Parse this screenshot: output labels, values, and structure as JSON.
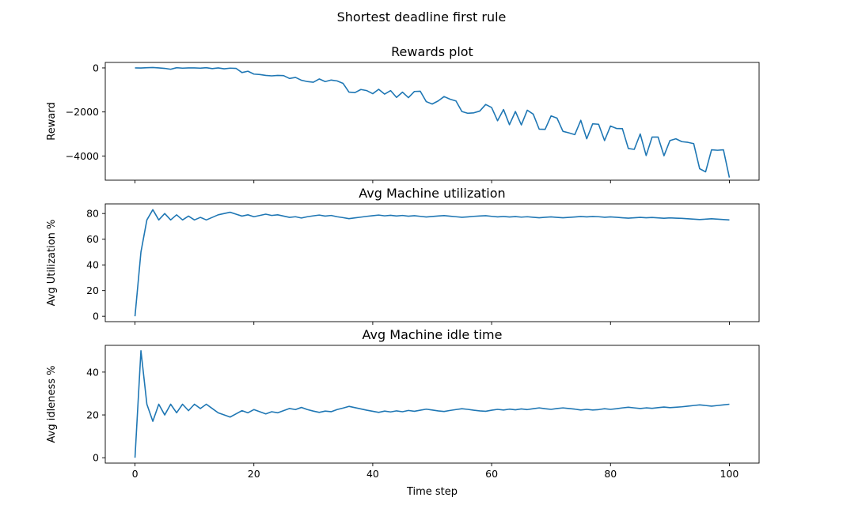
{
  "figure": {
    "suptitle": "Shortest deadline first rule",
    "line_color": "#1f77b4"
  },
  "chart_data": [
    {
      "type": "line",
      "title": "Rewards plot",
      "xlabel": "",
      "ylabel": "Reward",
      "xlim": [
        -5,
        105
      ],
      "ylim": [
        -5100,
        250
      ],
      "xticks": [
        0,
        20,
        40,
        60,
        80,
        100
      ],
      "xticklabels": [
        "",
        "",
        "",
        "",
        "",
        ""
      ],
      "yticks": [
        0,
        -2000,
        -4000
      ],
      "yticklabels": [
        "0",
        "−2000",
        "−4000"
      ],
      "grid": false,
      "x": [
        0,
        1,
        2,
        3,
        4,
        5,
        6,
        7,
        8,
        9,
        10,
        11,
        12,
        13,
        14,
        15,
        16,
        17,
        18,
        19,
        20,
        21,
        22,
        23,
        24,
        25,
        26,
        27,
        28,
        29,
        30,
        31,
        32,
        33,
        34,
        35,
        36,
        37,
        38,
        39,
        40,
        41,
        42,
        43,
        44,
        45,
        46,
        47,
        48,
        49,
        50,
        51,
        52,
        53,
        54,
        55,
        56,
        57,
        58,
        59,
        60,
        61,
        62,
        63,
        64,
        65,
        66,
        67,
        68,
        69,
        70,
        71,
        72,
        73,
        74,
        75,
        76,
        77,
        78,
        79,
        80,
        81,
        82,
        83,
        84,
        85,
        86,
        87,
        88,
        89,
        90,
        91,
        92,
        93,
        94,
        95,
        96,
        97,
        98,
        99,
        100
      ],
      "y": [
        0,
        -5,
        10,
        20,
        0,
        -20,
        -60,
        10,
        -10,
        0,
        0,
        -10,
        10,
        -30,
        0,
        -40,
        -10,
        -20,
        -210,
        -150,
        -280,
        -300,
        -340,
        -360,
        -340,
        -350,
        -480,
        -430,
        -560,
        -620,
        -650,
        -500,
        -620,
        -550,
        -590,
        -700,
        -1100,
        -1120,
        -980,
        -1030,
        -1170,
        -970,
        -1190,
        -1030,
        -1340,
        -1100,
        -1350,
        -1070,
        -1060,
        -1530,
        -1640,
        -1500,
        -1300,
        -1420,
        -1500,
        -1980,
        -2060,
        -2040,
        -1960,
        -1660,
        -1800,
        -2400,
        -1890,
        -2580,
        -1980,
        -2590,
        -1920,
        -2100,
        -2780,
        -2790,
        -2180,
        -2280,
        -2880,
        -2950,
        -3030,
        -2380,
        -3220,
        -2540,
        -2560,
        -3300,
        -2640,
        -2750,
        -2760,
        -3660,
        -3700,
        -3000,
        -3980,
        -3140,
        -3140,
        -3990,
        -3300,
        -3220,
        -3350,
        -3380,
        -3440,
        -4580,
        -4720,
        -3720,
        -3740,
        -3720,
        -4980
      ]
    },
    {
      "type": "line",
      "title": "Avg Machine utilization",
      "xlabel": "",
      "ylabel": "Avg Utilization %",
      "xlim": [
        -5,
        105
      ],
      "ylim": [
        -4.2,
        87.5
      ],
      "xticks": [
        0,
        20,
        40,
        60,
        80,
        100
      ],
      "xticklabels": [
        "",
        "",
        "",
        "",
        "",
        ""
      ],
      "yticks": [
        0,
        20,
        40,
        60,
        80
      ],
      "yticklabels": [
        "0",
        "20",
        "40",
        "60",
        "80"
      ],
      "grid": false,
      "x": [
        0,
        1,
        2,
        3,
        4,
        5,
        6,
        7,
        8,
        9,
        10,
        11,
        12,
        13,
        14,
        15,
        16,
        17,
        18,
        19,
        20,
        21,
        22,
        23,
        24,
        25,
        26,
        27,
        28,
        29,
        30,
        31,
        32,
        33,
        34,
        35,
        36,
        37,
        38,
        39,
        40,
        41,
        42,
        43,
        44,
        45,
        46,
        47,
        48,
        49,
        50,
        51,
        52,
        53,
        54,
        55,
        56,
        57,
        58,
        59,
        60,
        61,
        62,
        63,
        64,
        65,
        66,
        67,
        68,
        69,
        70,
        71,
        72,
        73,
        74,
        75,
        76,
        77,
        78,
        79,
        80,
        81,
        82,
        83,
        84,
        85,
        86,
        87,
        88,
        89,
        90,
        91,
        92,
        93,
        94,
        95,
        96,
        97,
        98,
        99,
        100
      ],
      "y": [
        0,
        50,
        75,
        83,
        75,
        80,
        75,
        79,
        75,
        78,
        75,
        77,
        75,
        77,
        79,
        80,
        81,
        79.5,
        78,
        79,
        77.5,
        78.5,
        79.5,
        78.5,
        79,
        78,
        77,
        77.5,
        76.5,
        77.5,
        78.2,
        78.8,
        78,
        78.5,
        77.5,
        76.8,
        76,
        76.6,
        77.2,
        77.8,
        78.3,
        78.8,
        78.2,
        78.6,
        78.1,
        78.5,
        77.9,
        78.3,
        77.8,
        77.3,
        77.7,
        78.1,
        78.4,
        77.9,
        77.5,
        77.1,
        77.4,
        77.8,
        78.1,
        78.3,
        77.8,
        77.4,
        77.7,
        77.3,
        77.6,
        77.2,
        77.5,
        77.1,
        76.7,
        77.1,
        77.4,
        77,
        76.7,
        77,
        77.3,
        77.7,
        77.4,
        77.7,
        77.5,
        77.1,
        77.4,
        77.1,
        76.7,
        76.4,
        76.7,
        77,
        76.7,
        76.9,
        76.6,
        76.3,
        76.6,
        76.4,
        76.2,
        75.9,
        75.6,
        75.3,
        75.6,
        75.9,
        75.6,
        75.3,
        75
      ]
    },
    {
      "type": "line",
      "title": "Avg Machine idle time",
      "xlabel": "Time step",
      "ylabel": "Avg idleness %",
      "xlim": [
        -5,
        105
      ],
      "ylim": [
        -2.5,
        52.5
      ],
      "xticks": [
        0,
        20,
        40,
        60,
        80,
        100
      ],
      "xticklabels": [
        "0",
        "20",
        "40",
        "60",
        "80",
        "100"
      ],
      "yticks": [
        0,
        20,
        40
      ],
      "yticklabels": [
        "0",
        "20",
        "40"
      ],
      "grid": false,
      "x": [
        0,
        1,
        2,
        3,
        4,
        5,
        6,
        7,
        8,
        9,
        10,
        11,
        12,
        13,
        14,
        15,
        16,
        17,
        18,
        19,
        20,
        21,
        22,
        23,
        24,
        25,
        26,
        27,
        28,
        29,
        30,
        31,
        32,
        33,
        34,
        35,
        36,
        37,
        38,
        39,
        40,
        41,
        42,
        43,
        44,
        45,
        46,
        47,
        48,
        49,
        50,
        51,
        52,
        53,
        54,
        55,
        56,
        57,
        58,
        59,
        60,
        61,
        62,
        63,
        64,
        65,
        66,
        67,
        68,
        69,
        70,
        71,
        72,
        73,
        74,
        75,
        76,
        77,
        78,
        79,
        80,
        81,
        82,
        83,
        84,
        85,
        86,
        87,
        88,
        89,
        90,
        91,
        92,
        93,
        94,
        95,
        96,
        97,
        98,
        99,
        100
      ],
      "y": [
        0,
        50,
        25,
        17,
        25,
        20,
        25,
        21,
        25,
        22,
        25,
        23,
        25,
        23,
        21,
        20,
        19,
        20.5,
        22,
        21,
        22.5,
        21.5,
        20.5,
        21.5,
        21,
        22,
        23,
        22.5,
        23.5,
        22.5,
        21.8,
        21.2,
        21.8,
        21.5,
        22.5,
        23.2,
        24,
        23.4,
        22.8,
        22.2,
        21.7,
        21.2,
        21.8,
        21.4,
        21.9,
        21.5,
        22.1,
        21.7,
        22.2,
        22.7,
        22.3,
        21.9,
        21.6,
        22.1,
        22.5,
        22.9,
        22.6,
        22.2,
        21.9,
        21.7,
        22.2,
        22.6,
        22.3,
        22.7,
        22.4,
        22.8,
        22.5,
        22.9,
        23.3,
        22.9,
        22.6,
        23,
        23.3,
        23,
        22.7,
        22.3,
        22.6,
        22.3,
        22.5,
        22.9,
        22.6,
        22.9,
        23.3,
        23.6,
        23.3,
        23,
        23.3,
        23.1,
        23.4,
        23.7,
        23.4,
        23.6,
        23.8,
        24.1,
        24.4,
        24.7,
        24.4,
        24.1,
        24.4,
        24.7,
        25
      ]
    }
  ]
}
